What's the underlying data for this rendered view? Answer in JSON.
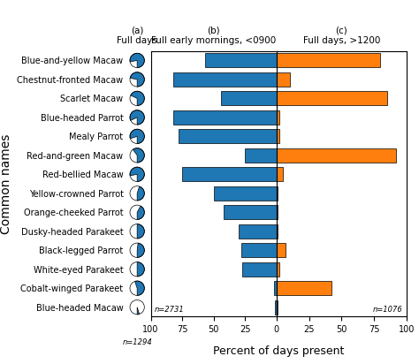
{
  "chart_data": [
    {
      "type": "pie",
      "title": "(a)\nFull days",
      "ylabel": "Common names",
      "categories": [
        "Blue-and-yellow Macaw",
        "Chestnut-fronted Macaw",
        "Scarlet Macaw",
        "Blue-headed Parrot",
        "Mealy Parrot",
        "Red-and-green Macaw",
        "Red-bellied Macaw",
        "Yellow-crowned Parrot",
        "Orange-cheeked Parrot",
        "Dusky-headed Parakeet",
        "Black-legged Parrot",
        "White-eyed Parakeet",
        "Cobalt-winged Parakeet",
        "Blue-headed Macaw"
      ],
      "values": [
        0.78,
        0.72,
        0.68,
        0.82,
        0.8,
        0.6,
        0.78,
        0.45,
        0.42,
        0.5,
        0.48,
        0.5,
        0.55,
        0.05
      ],
      "color": "#1f77b4",
      "annotations": [
        "n=1294"
      ]
    },
    {
      "type": "bar",
      "orientation": "horizontal",
      "title": "(b)\nFull early mornings, <0900",
      "categories": [
        "Blue-and-yellow Macaw",
        "Chestnut-fronted Macaw",
        "Scarlet Macaw",
        "Blue-headed Parrot",
        "Mealy Parrot",
        "Red-and-green Macaw",
        "Red-bellied Macaw",
        "Yellow-crowned Parrot",
        "Orange-cheeked Parrot",
        "Dusky-headed Parakeet",
        "Black-legged Parrot",
        "White-eyed Parakeet",
        "Cobalt-winged Parakeet",
        "Blue-headed Macaw"
      ],
      "values": [
        57,
        82,
        44,
        82,
        78,
        25,
        75,
        50,
        42,
        30,
        28,
        27,
        2,
        1
      ],
      "color": "#1f77b4",
      "xlim": [
        100,
        0
      ],
      "xticks": [
        100,
        75,
        50,
        25
      ],
      "annotations": [
        "n=2731"
      ]
    },
    {
      "type": "bar",
      "orientation": "horizontal",
      "title": "(c)\nFull days, >1200",
      "xlabel": "Percent of days present",
      "categories": [
        "Blue-and-yellow Macaw",
        "Chestnut-fronted Macaw",
        "Scarlet Macaw",
        "Blue-headed Parrot",
        "Mealy Parrot",
        "Red-and-green Macaw",
        "Red-bellied Macaw",
        "Yellow-crowned Parrot",
        "Orange-cheeked Parrot",
        "Dusky-headed Parakeet",
        "Black-legged Parrot",
        "White-eyed Parakeet",
        "Cobalt-winged Parakeet",
        "Blue-headed Macaw"
      ],
      "values": [
        80,
        10,
        85,
        2,
        2,
        92,
        5,
        1,
        1,
        1,
        7,
        2,
        42,
        1
      ],
      "color": "#ff7f0e",
      "xlim": [
        0,
        100
      ],
      "xticks": [
        0,
        25,
        50,
        75,
        100
      ],
      "annotations": [
        "n=1076"
      ]
    }
  ]
}
